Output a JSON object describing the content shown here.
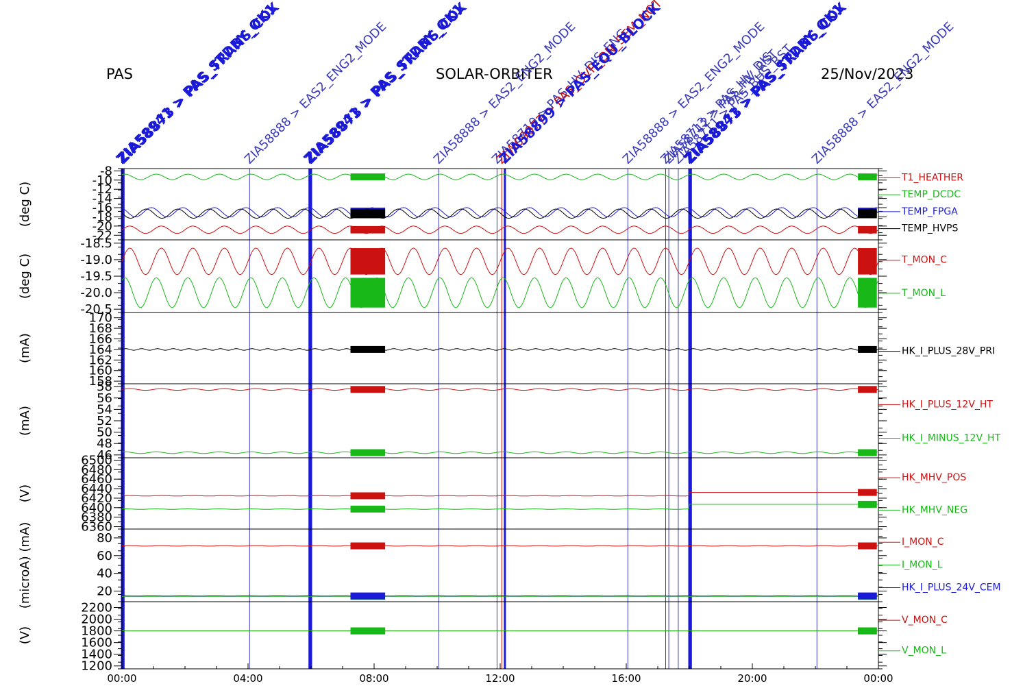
{
  "header": {
    "left": "PAS",
    "center": "SOLAR-ORBITER",
    "right": "25/Nov/2023"
  },
  "x_axis": {
    "ticks": [
      "00:00",
      "04:00",
      "08:00",
      "12:00",
      "16:00",
      "20:00",
      "00:00"
    ]
  },
  "event_markers": [
    {
      "t": 0.0,
      "label": "ZIA58941 > PAS_STDBY_OK1",
      "color": "#1a1ad8",
      "bold": true
    },
    {
      "t": 0.05,
      "label": "ZIA58873 > PAS_TRANS_COX",
      "color": "#1a1ad8",
      "bold": true
    },
    {
      "t": 4.05,
      "label": "ZIA58888 > EAS2_ENG2_MODE",
      "color": "#3a3ab8",
      "bold": false
    },
    {
      "t": 5.95,
      "label": "ZIA58941 > PAS_STDBY_OK1",
      "color": "#1a1ad8",
      "bold": true
    },
    {
      "t": 6.0,
      "label": "ZIA58873 > PAS_TRANS_COX",
      "color": "#1a1ad8",
      "bold": true
    },
    {
      "t": 10.05,
      "label": "ZIA58888 > EAS2_ENG2_MODE",
      "color": "#3a3ab8",
      "bold": false
    },
    {
      "t": 11.9,
      "label": "ZIA58710 > PAS_HV_DIS_ENG",
      "color": "#3a3ab8",
      "bold": false
    },
    {
      "t": 12.05,
      "label": "ZIW09077 > PAS_OVR_ON_SEM_NOT",
      "color": "#cc1111",
      "bold": false
    },
    {
      "t": 12.15,
      "label": "ZIA58899 > PAS_EQU_BLOCK",
      "color": "#1a1ad8",
      "bold": true
    },
    {
      "t": 16.05,
      "label": "ZIA58888 > EAS2_ENG2_MODE",
      "color": "#3a3ab8",
      "bold": false
    },
    {
      "t": 17.25,
      "label": "ZIA58713 > PAS_HV_DIS",
      "color": "#3a3ab8",
      "bold": false
    },
    {
      "t": 17.35,
      "label": "ZIA58712 > PAS_HV_RST",
      "color": "#3a3ab8",
      "bold": false
    },
    {
      "t": 17.65,
      "label": "ZIA58711 > PAS_BUS_RST",
      "color": "#3a3ab8",
      "bold": false
    },
    {
      "t": 18.0,
      "label": "ZIA58941 > PAS_STDBY_OK1",
      "color": "#1a1ad8",
      "bold": true
    },
    {
      "t": 18.05,
      "label": "ZIA58873 > PAS_TRANS_COX",
      "color": "#1a1ad8",
      "bold": true
    },
    {
      "t": 22.05,
      "label": "ZIA58888 > EAS2_ENG2_MODE",
      "color": "#3a3ab8",
      "bold": false
    }
  ],
  "chart_data": [
    {
      "type": "line",
      "ylabel": "(deg C)",
      "ylim": [
        -23,
        -7.5
      ],
      "yticks": [
        "-8",
        "-10",
        "-12",
        "-14",
        "-16",
        "-18",
        "-20",
        "-22"
      ],
      "yticks_values": [
        -8,
        -10,
        -12,
        -14,
        -16,
        -18,
        -20,
        -22
      ],
      "series": [
        {
          "name": "T1_HEATHER",
          "color": "#cc1111",
          "mean": -20.8,
          "amp": 0.8,
          "period": 1.0
        },
        {
          "name": "TEMP_DCDC",
          "color": "#18b818",
          "mean": -9.3,
          "amp": 0.6,
          "period": 1.0
        },
        {
          "name": "TEMP_FPGA",
          "color": "#1a1ad8",
          "mean": -17.0,
          "amp": 1.0,
          "period": 1.0
        },
        {
          "name": "TEMP_HVPS",
          "color": "#000000",
          "mean": -17.3,
          "amp": 1.0,
          "period": 1.0
        }
      ]
    },
    {
      "type": "line",
      "ylabel": "(deg C)",
      "ylim": [
        -20.6,
        -18.4
      ],
      "yticks": [
        "-18.5",
        "-19.0",
        "-19.5",
        "-20.0",
        "-20.5"
      ],
      "yticks_values": [
        -18.5,
        -19.0,
        -19.5,
        -20.0,
        -20.5
      ],
      "series": [
        {
          "name": "T_MON_C",
          "color": "#cc1111",
          "mean": -19.05,
          "amp": 0.4,
          "period": 1.0
        },
        {
          "name": "T_MON_L",
          "color": "#18b818",
          "mean": -20.0,
          "amp": 0.45,
          "period": 1.0
        }
      ]
    },
    {
      "type": "line",
      "ylabel": "(mA)",
      "ylim": [
        157.5,
        171
      ],
      "yticks": [
        "170",
        "168",
        "166",
        "164",
        "162",
        "160",
        "158"
      ],
      "yticks_values": [
        170,
        168,
        166,
        164,
        162,
        160,
        158
      ],
      "series": [
        {
          "name": "HK_I_PLUS_28V_PRI",
          "color": "#000000",
          "mean": 164.0,
          "amp": 0.15,
          "period": 0.5
        }
      ]
    },
    {
      "type": "line",
      "ylabel": "(mA)",
      "ylim": [
        45.5,
        58.5
      ],
      "yticks": [
        "58",
        "56",
        "54",
        "52",
        "50",
        "48",
        "46"
      ],
      "yticks_values": [
        58,
        56,
        54,
        52,
        50,
        48,
        46
      ],
      "series": [
        {
          "name": "HK_I_PLUS_12V_HT",
          "color": "#cc1111",
          "mean": 57.5,
          "amp": 0.15,
          "period": 1.0
        },
        {
          "name": "HK_I_MINUS_12V_HT",
          "color": "#18b818",
          "mean": 46.4,
          "amp": 0.15,
          "period": 1.0
        }
      ]
    },
    {
      "type": "line",
      "ylabel": "(V)",
      "ylim": [
        6355,
        6505
      ],
      "yticks": [
        "6500",
        "6480",
        "6460",
        "6440",
        "6420",
        "6400",
        "6380",
        "6360"
      ],
      "yticks_values": [
        6500,
        6480,
        6460,
        6440,
        6420,
        6400,
        6380,
        6360
      ],
      "series": [
        {
          "name": "HK_MHV_POS",
          "color": "#cc1111",
          "mean": 6425,
          "amp": 0.5,
          "period": 1.0,
          "step_at": 18.0,
          "step_to": 6432
        },
        {
          "name": "HK_MHV_NEG",
          "color": "#18b818",
          "mean": 6397,
          "amp": 0.5,
          "period": 1.0,
          "step_at": 18.0,
          "step_to": 6407
        }
      ]
    },
    {
      "type": "line",
      "ylabel": "(microA) (mA)",
      "ylim": [
        8,
        90
      ],
      "yticks": [
        "80",
        "60",
        "40",
        "20"
      ],
      "yticks_values": [
        80,
        60,
        40,
        20
      ],
      "series": [
        {
          "name": "I_MON_C",
          "color": "#cc1111",
          "mean": 71,
          "amp": 0.3,
          "period": 1.0
        },
        {
          "name": "I_MON_L",
          "color": "#18b818",
          "mean": 14,
          "amp": 0.0,
          "period": 1.0
        },
        {
          "name": "HK_I_PLUS_24V_CEM",
          "color": "#1a1ad8",
          "mean": 14.5,
          "amp": 0.1,
          "period": 1.0
        }
      ]
    },
    {
      "type": "line",
      "ylabel": "(V)",
      "ylim": [
        1150,
        2300
      ],
      "yticks": [
        "2200",
        "2000",
        "1800",
        "1600",
        "1400",
        "1200"
      ],
      "yticks_values": [
        2200,
        2000,
        1800,
        1600,
        1400,
        1200
      ],
      "series": [
        {
          "name": "V_MON_C",
          "color": "#cc1111",
          "mean": 1800,
          "amp": 0.0,
          "period": 1.0
        },
        {
          "name": "V_MON_L",
          "color": "#18b818",
          "mean": 1800,
          "amp": 0.0,
          "period": 1.0
        }
      ]
    }
  ]
}
